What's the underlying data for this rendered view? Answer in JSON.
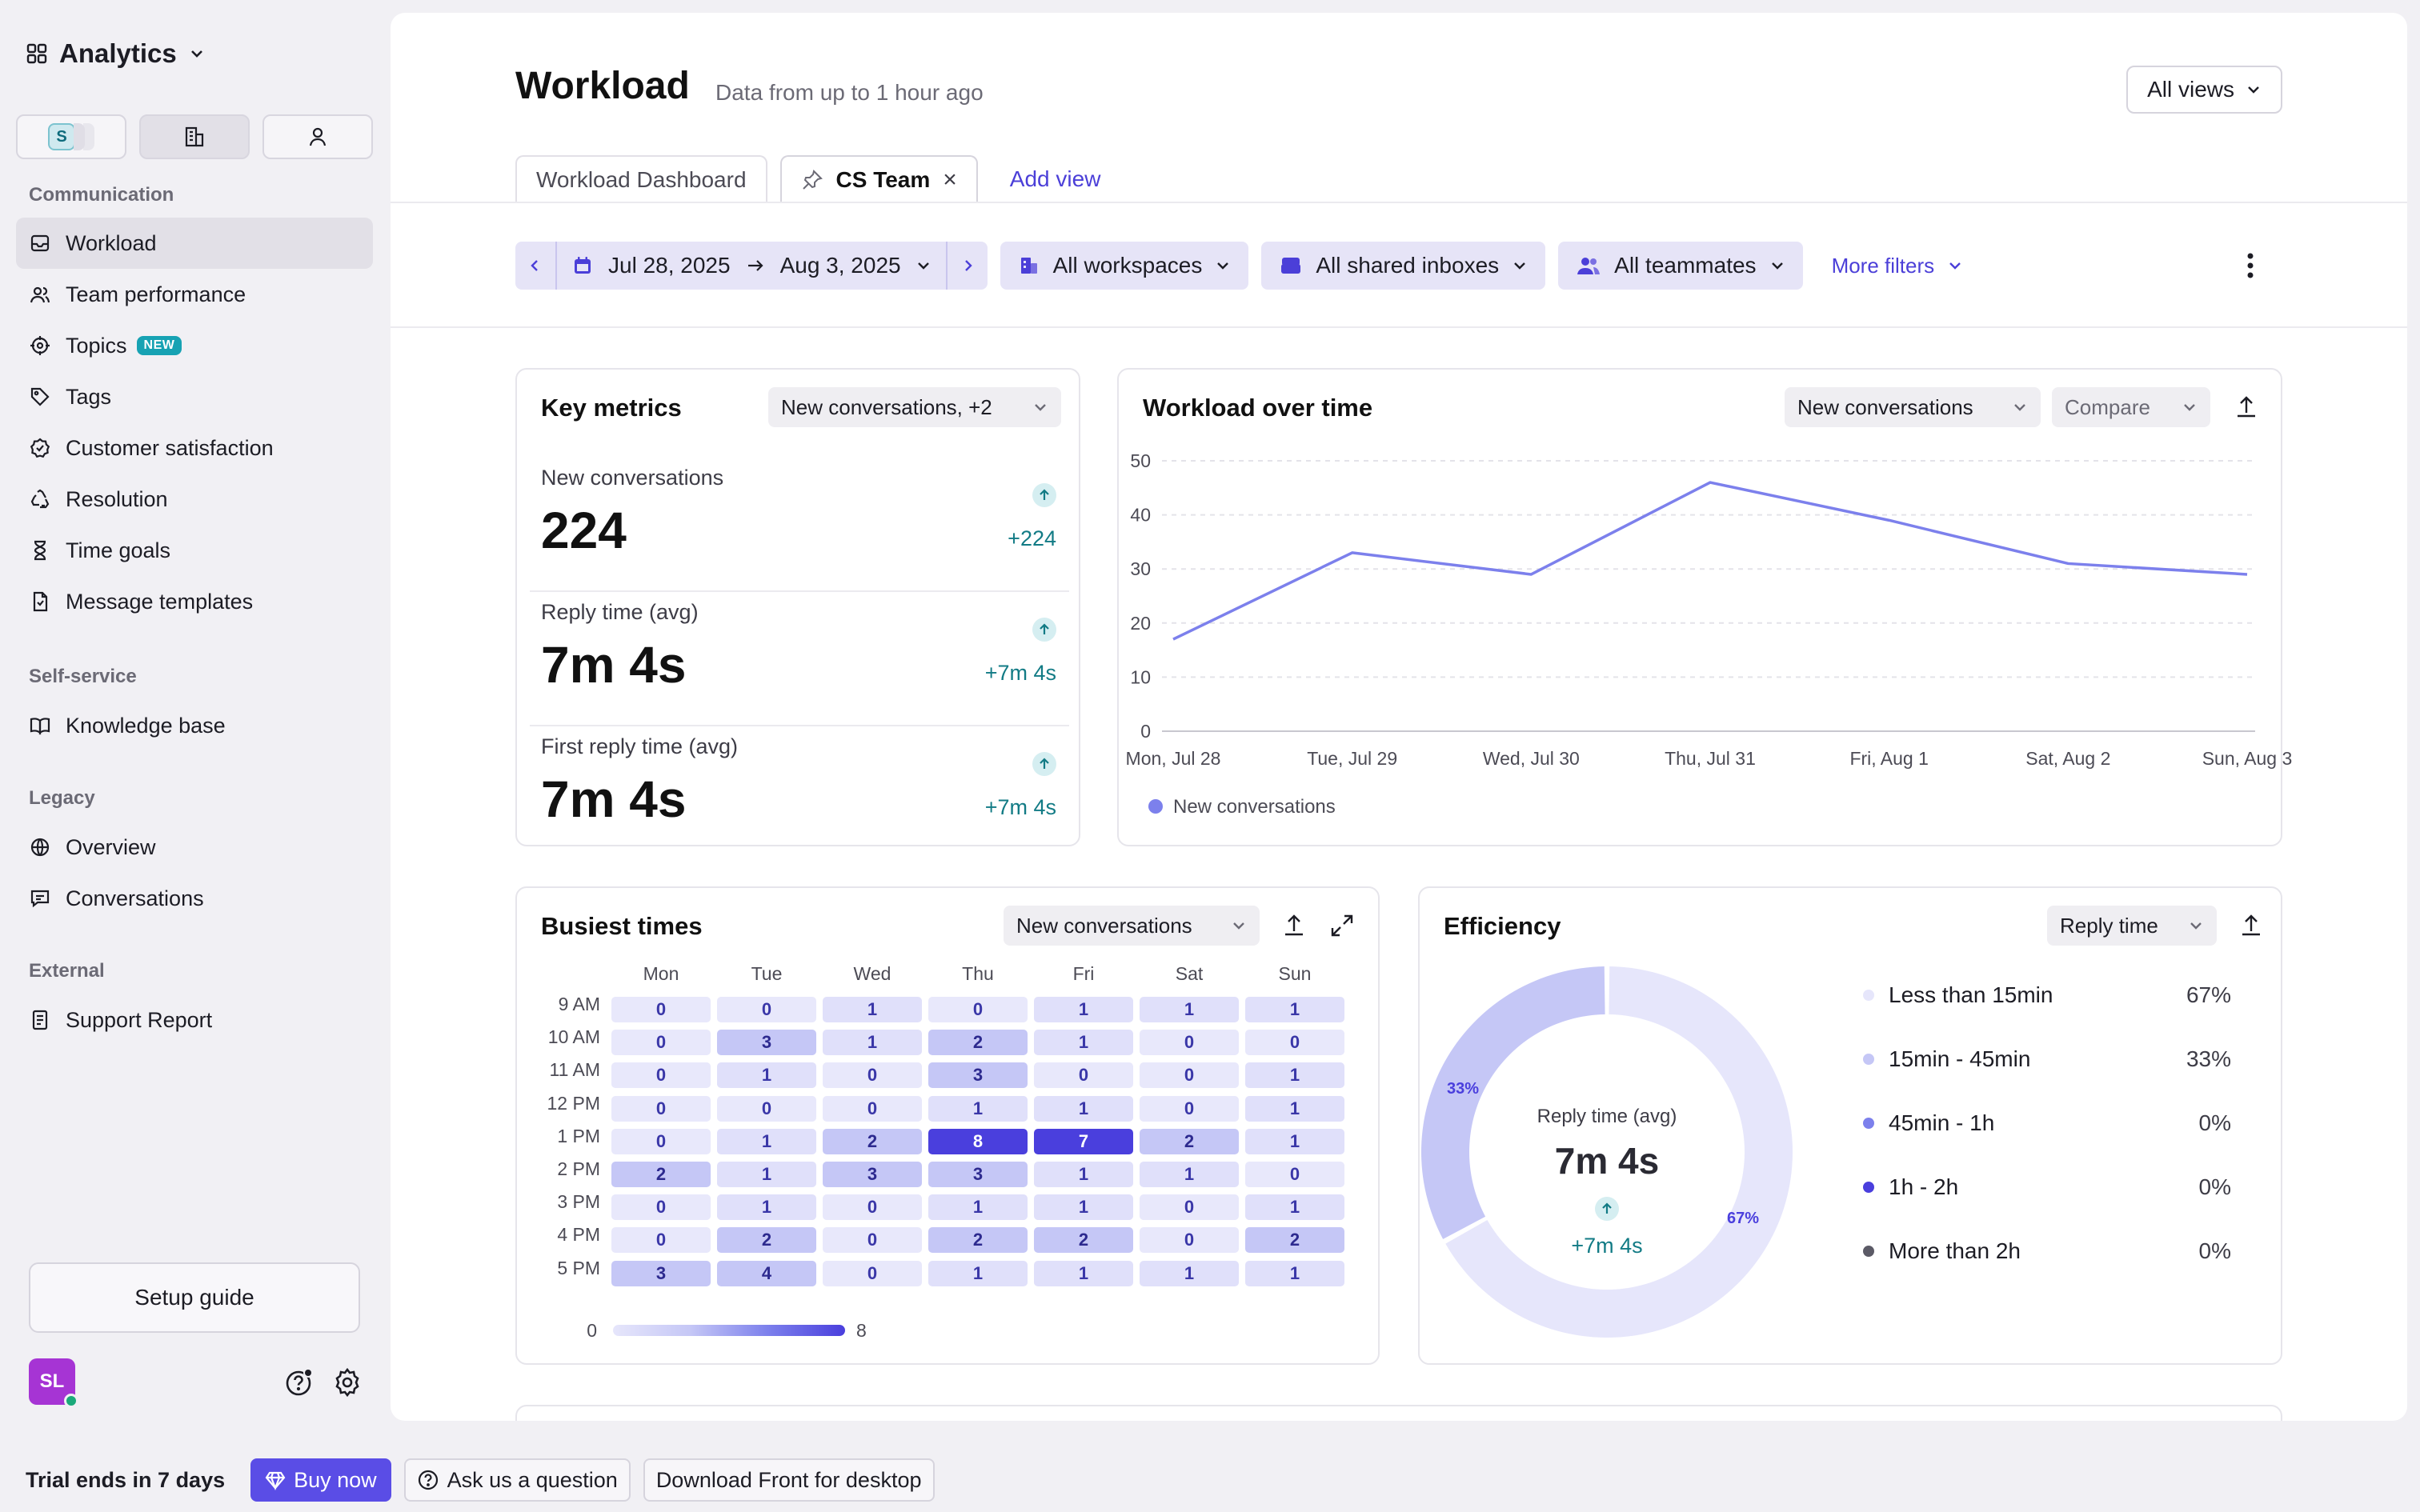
{
  "app": {
    "title": "Analytics"
  },
  "sidebar": {
    "switcher_letter": "S",
    "sections": {
      "communication": "Communication",
      "self_service": "Self-service",
      "legacy": "Legacy",
      "external": "External"
    },
    "items": {
      "workload": "Workload",
      "team_performance": "Team performance",
      "topics": "Topics",
      "topics_badge": "NEW",
      "tags": "Tags",
      "customer_satisfaction": "Customer satisfaction",
      "resolution": "Resolution",
      "time_goals": "Time goals",
      "message_templates": "Message templates",
      "knowledge_base": "Knowledge base",
      "overview": "Overview",
      "conversations": "Conversations",
      "support_report": "Support Report"
    },
    "setup_guide": "Setup guide",
    "user_initials": "SL"
  },
  "bottom_bar": {
    "trial": "Trial ends in 7 days",
    "buy_now": "Buy now",
    "ask": "Ask us a question",
    "download": "Download Front for desktop"
  },
  "header": {
    "title": "Workload",
    "subtitle": "Data from up to 1 hour ago",
    "all_views": "All views"
  },
  "tabs": {
    "dashboard": "Workload Dashboard",
    "cs_team": "CS Team",
    "close": "×",
    "add_view": "Add view"
  },
  "filters": {
    "date_start": "Jul 28, 2025",
    "date_end": "Aug 3, 2025",
    "workspaces": "All workspaces",
    "inboxes": "All shared inboxes",
    "teammates": "All teammates",
    "more": "More filters"
  },
  "key_metrics": {
    "title": "Key metrics",
    "selector": "New conversations, +2",
    "rows": [
      {
        "label": "New conversations",
        "value": "224",
        "delta": "+224"
      },
      {
        "label": "Reply time (avg)",
        "value": "7m 4s",
        "delta": "+7m 4s"
      },
      {
        "label": "First reply time (avg)",
        "value": "7m 4s",
        "delta": "+7m 4s"
      }
    ]
  },
  "workload_chart": {
    "title": "Workload over time",
    "metric_selector": "New conversations",
    "compare": "Compare",
    "accent": "#7c80ec"
  },
  "busiest": {
    "title": "Busiest times",
    "selector": "New conversations",
    "scale_min": "0",
    "scale_max": "8"
  },
  "efficiency": {
    "title": "Efficiency",
    "selector": "Reply time",
    "center_label": "Reply time (avg)",
    "center_value": "7m 4s",
    "center_delta": "+7m 4s",
    "slice_labels": [
      "33%",
      "67%"
    ],
    "legend": [
      {
        "label": "Less than 15min",
        "pct": "67%",
        "color": "#e6e6fb"
      },
      {
        "label": "15min - 45min",
        "pct": "33%",
        "color": "#c5c7f6"
      },
      {
        "label": "45min - 1h",
        "pct": "0%",
        "color": "#7c80ec"
      },
      {
        "label": "1h - 2h",
        "pct": "0%",
        "color": "#4a3fdd"
      },
      {
        "label": "More than 2h",
        "pct": "0%",
        "color": "#5b5a66"
      }
    ]
  },
  "chart_data": [
    {
      "type": "line",
      "title": "Workload over time",
      "categories": [
        "Mon, Jul 28",
        "Tue, Jul 29",
        "Wed, Jul 30",
        "Thu, Jul 31",
        "Fri, Aug 1",
        "Sat, Aug 2",
        "Sun, Aug 3"
      ],
      "series": [
        {
          "name": "New conversations",
          "values": [
            17,
            33,
            29,
            46,
            39,
            31,
            29
          ]
        }
      ],
      "ylim": [
        0,
        50
      ],
      "yticks": [
        0,
        10,
        20,
        30,
        40,
        50
      ],
      "grid": true,
      "legend": "bottom-left"
    },
    {
      "type": "heatmap",
      "title": "Busiest times",
      "x": [
        "Mon",
        "Tue",
        "Wed",
        "Thu",
        "Fri",
        "Sat",
        "Sun"
      ],
      "y": [
        "9 AM",
        "10 AM",
        "11 AM",
        "12 PM",
        "1 PM",
        "2 PM",
        "3 PM",
        "4 PM",
        "5 PM"
      ],
      "values": [
        [
          0,
          0,
          1,
          0,
          1,
          1,
          1
        ],
        [
          0,
          3,
          1,
          2,
          1,
          0,
          0
        ],
        [
          0,
          1,
          0,
          3,
          0,
          0,
          1
        ],
        [
          0,
          0,
          0,
          1,
          1,
          0,
          1
        ],
        [
          0,
          1,
          2,
          8,
          7,
          2,
          1
        ],
        [
          2,
          1,
          3,
          3,
          1,
          1,
          0
        ],
        [
          0,
          1,
          0,
          1,
          1,
          0,
          1
        ],
        [
          0,
          2,
          0,
          2,
          2,
          0,
          2
        ],
        [
          3,
          4,
          0,
          1,
          1,
          1,
          1
        ]
      ],
      "range": [
        0,
        8
      ]
    },
    {
      "type": "pie",
      "title": "Efficiency",
      "categories": [
        "Less than 15min",
        "15min - 45min",
        "45min - 1h",
        "1h - 2h",
        "More than 2h"
      ],
      "values": [
        67,
        33,
        0,
        0,
        0
      ]
    }
  ]
}
